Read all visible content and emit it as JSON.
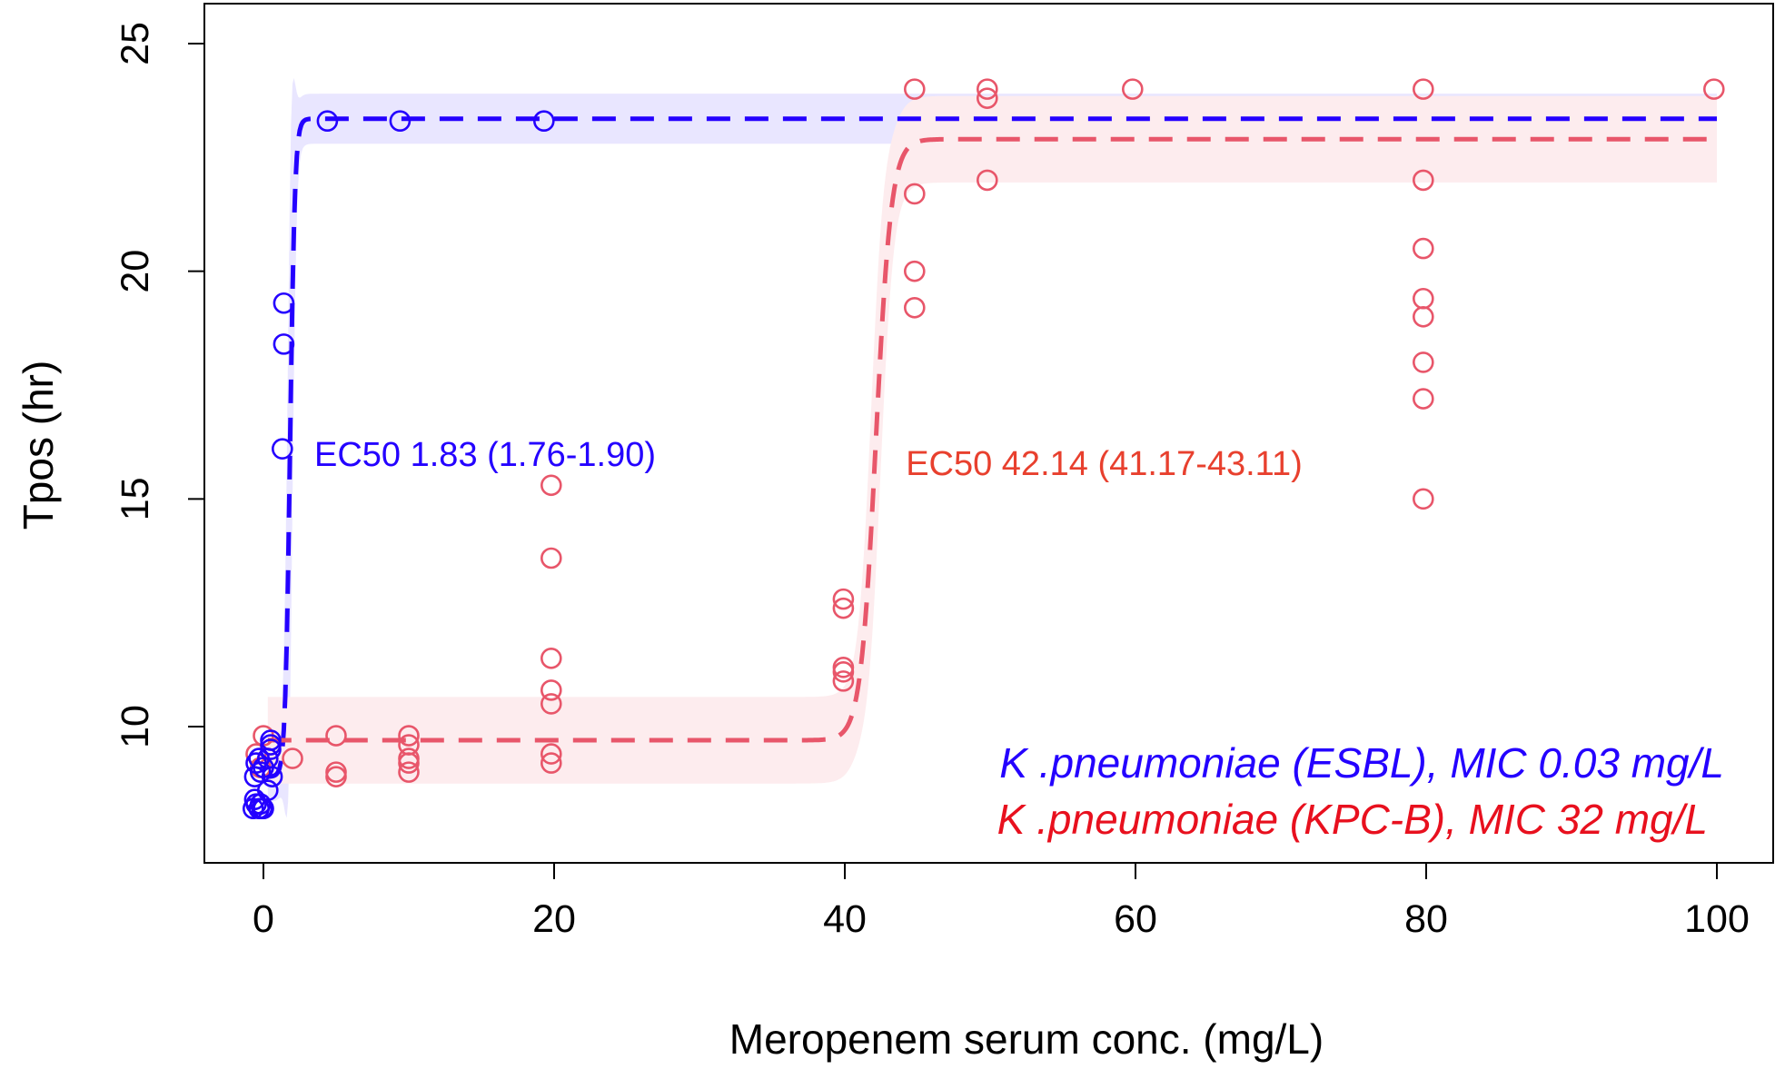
{
  "chart_data": {
    "type": "scatter",
    "title": "",
    "xlabel": "Meropenem serum conc. (mg/L)",
    "ylabel": "Tpos (hr)",
    "xlim": [
      -4,
      104
    ],
    "ylim": [
      7.2,
      25.9
    ],
    "xticks": [
      0,
      20,
      40,
      60,
      80,
      100
    ],
    "yticks": [
      10,
      15,
      20,
      25
    ],
    "grid": false,
    "legend_position": "bottom-right",
    "series": [
      {
        "name": "K .pneumoniae (ESBL), MIC 0.03 mg/L",
        "color": "#2400FF",
        "band_color": "#E9E6FF",
        "ec50_label": "EC50 1.83 (1.76-1.90)",
        "ec50_label_at": [
          3.5,
          16.0
        ],
        "fit": {
          "bottom": 8.9,
          "top": 23.35,
          "ec50": 1.83,
          "hill": 6,
          "band_halfwidth": 0.55
        },
        "points": [
          [
            -0.7,
            8.2
          ],
          [
            -0.5,
            8.3
          ],
          [
            -0.3,
            8.2
          ],
          [
            -0.1,
            8.2
          ],
          [
            0.0,
            8.2
          ],
          [
            -0.6,
            8.4
          ],
          [
            -0.2,
            8.3
          ],
          [
            -0.6,
            8.9
          ],
          [
            -0.5,
            9.2
          ],
          [
            -0.3,
            9.3
          ],
          [
            0.0,
            9.1
          ],
          [
            -0.2,
            9.0
          ],
          [
            0.3,
            8.6
          ],
          [
            0.3,
            9.3
          ],
          [
            0.5,
            9.5
          ],
          [
            0.5,
            9.6
          ],
          [
            0.5,
            9.7
          ],
          [
            0.6,
            8.9
          ],
          [
            1.3,
            16.1
          ],
          [
            1.4,
            18.4
          ],
          [
            1.4,
            19.3
          ],
          [
            4.4,
            23.3
          ],
          [
            9.4,
            23.3
          ],
          [
            19.3,
            23.3
          ]
        ]
      },
      {
        "name": "K .pneumoniae (KPC-B), MIC 32 mg/L",
        "color": "#E8566A",
        "band_color": "#FDECEE",
        "ec50_label": "EC50 42.14 (41.17-43.11)",
        "ec50_label_at": [
          44.2,
          15.8
        ],
        "fit": {
          "bottom": 9.7,
          "top": 22.9,
          "ec50": 42.14,
          "hill": 1.9,
          "band_halfwidth": 0.95
        },
        "points": [
          [
            0.0,
            9.8
          ],
          [
            -0.5,
            9.4
          ],
          [
            -0.2,
            9.1
          ],
          [
            0.3,
            9.3
          ],
          [
            2.0,
            9.3
          ],
          [
            5.0,
            9.8
          ],
          [
            5.0,
            9.0
          ],
          [
            5.0,
            8.9
          ],
          [
            10.0,
            9.8
          ],
          [
            10.0,
            9.6
          ],
          [
            10.0,
            9.3
          ],
          [
            10.0,
            9.2
          ],
          [
            10.0,
            9.0
          ],
          [
            19.8,
            15.3
          ],
          [
            19.8,
            13.7
          ],
          [
            19.8,
            11.5
          ],
          [
            19.8,
            10.8
          ],
          [
            19.8,
            10.5
          ],
          [
            19.8,
            9.4
          ],
          [
            19.8,
            9.2
          ],
          [
            39.9,
            12.8
          ],
          [
            39.9,
            12.6
          ],
          [
            39.9,
            11.3
          ],
          [
            39.9,
            11.2
          ],
          [
            39.9,
            11.0
          ],
          [
            44.8,
            24.0
          ],
          [
            44.8,
            21.7
          ],
          [
            44.8,
            20.0
          ],
          [
            44.8,
            19.2
          ],
          [
            49.8,
            24.0
          ],
          [
            49.8,
            23.8
          ],
          [
            49.8,
            22.0
          ],
          [
            59.8,
            24.0
          ],
          [
            79.8,
            24.0
          ],
          [
            79.8,
            22.0
          ],
          [
            79.8,
            20.5
          ],
          [
            79.8,
            19.4
          ],
          [
            79.8,
            19.0
          ],
          [
            79.8,
            18.0
          ],
          [
            79.8,
            17.2
          ],
          [
            79.8,
            15.0
          ],
          [
            99.8,
            24.0
          ]
        ]
      }
    ]
  }
}
